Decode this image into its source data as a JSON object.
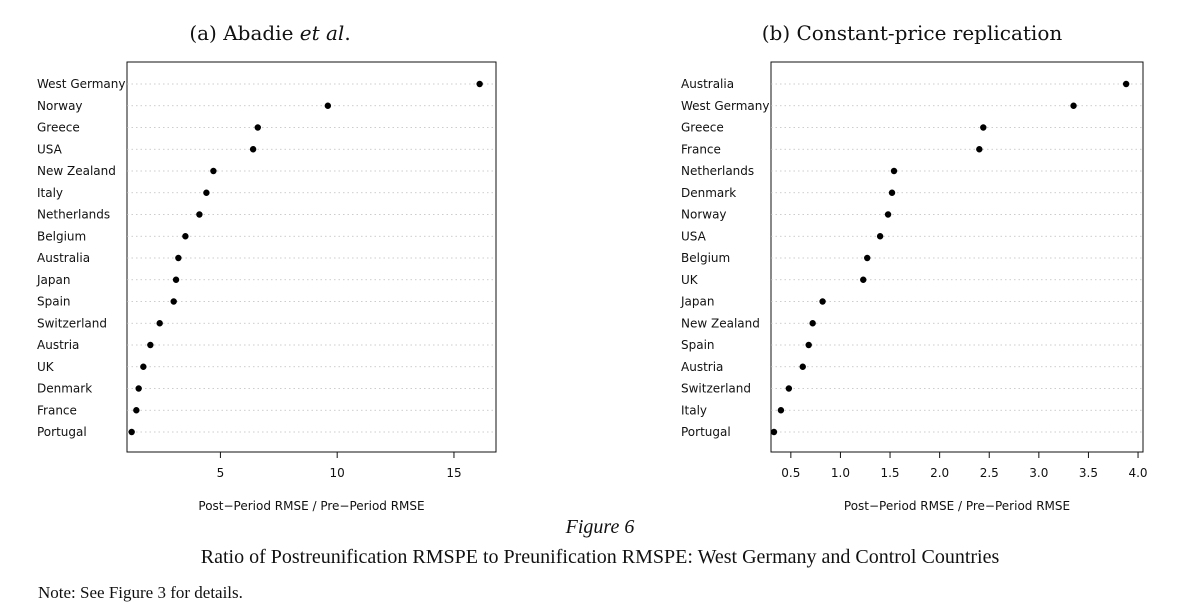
{
  "figure": {
    "label": "Figure 6",
    "caption": "Ratio of Postreunification RMSPE to Preunification RMSPE: West Germany and Control Countries",
    "note": "Note: See Figure 3 for details."
  },
  "chart_data": [
    {
      "type": "scatter",
      "panel": "a",
      "title_prefix": "(a) Abadie ",
      "title_italic": "et al",
      "title_suffix": ".",
      "xlabel": "Post−Period RMSE / Pre−Period RMSE",
      "ylabel": "",
      "xlim": [
        1.0,
        16.8
      ],
      "xticks": [
        5,
        10,
        15
      ],
      "xtick_labels": [
        "5",
        "10",
        "15"
      ],
      "grid": "horizontal-dotted",
      "categories": [
        "West Germany",
        "Norway",
        "Greece",
        "USA",
        "New Zealand",
        "Italy",
        "Netherlands",
        "Belgium",
        "Australia",
        "Japan",
        "Spain",
        "Switzerland",
        "Austria",
        "UK",
        "Denmark",
        "France",
        "Portugal"
      ],
      "values": [
        16.1,
        9.6,
        6.6,
        6.4,
        4.7,
        4.4,
        4.1,
        3.5,
        3.2,
        3.1,
        3.0,
        2.4,
        2.0,
        1.7,
        1.5,
        1.4,
        1.2
      ]
    },
    {
      "type": "scatter",
      "panel": "b",
      "title_prefix": "(b) Constant-price replication",
      "title_italic": "",
      "title_suffix": "",
      "xlabel": "Post−Period RMSE / Pre−Period RMSE",
      "ylabel": "",
      "xlim": [
        0.3,
        4.05
      ],
      "xticks": [
        0.5,
        1.0,
        1.5,
        2.0,
        2.5,
        3.0,
        3.5,
        4.0
      ],
      "xtick_labels": [
        "0.5",
        "1.0",
        "1.5",
        "2.0",
        "2.5",
        "3.0",
        "3.5",
        "4.0"
      ],
      "grid": "horizontal-dotted",
      "categories": [
        "Australia",
        "West Germany",
        "Greece",
        "France",
        "Netherlands",
        "Denmark",
        "Norway",
        "USA",
        "Belgium",
        "UK",
        "Japan",
        "New Zealand",
        "Spain",
        "Austria",
        "Switzerland",
        "Italy",
        "Portugal"
      ],
      "values": [
        3.88,
        3.35,
        2.44,
        2.4,
        1.54,
        1.52,
        1.48,
        1.4,
        1.27,
        1.23,
        0.82,
        0.72,
        0.68,
        0.62,
        0.48,
        0.4,
        0.33
      ]
    }
  ]
}
